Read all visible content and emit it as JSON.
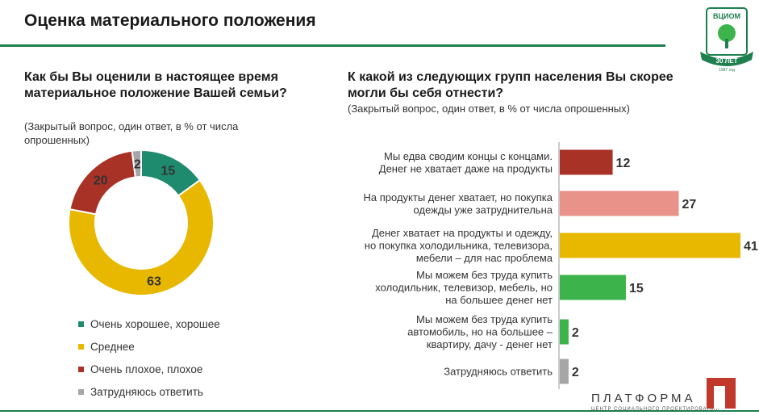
{
  "header": {
    "title": "Оценка материального положения",
    "logo_text_top": "ВЦИОМ",
    "logo_text_mid": "30 ЛЕТ",
    "logo_text_bottom": "1987 год"
  },
  "colors": {
    "rule": "#1e7f4f",
    "good": "#1e8a6e",
    "average": "#e8b800",
    "bad": "#a83226",
    "unsure": "#a6a6a6",
    "bar_red": "#a83226",
    "bar_pink": "#e8928a",
    "bar_yellow": "#e8b800",
    "bar_green": "#3cb44b",
    "bar_gray": "#a6a6a6"
  },
  "left": {
    "question": "Как бы Вы оценили в настоящее время материальное положение Вашей семьи?",
    "note": "(Закрытый вопрос, один ответ, в % от числа опрошенных)"
  },
  "right": {
    "question": "К какой из следующих групп населения Вы скорее могли бы себя отнести?",
    "note": "(Закрытый вопрос, один ответ, в % от числа опрошенных)"
  },
  "chart_data": [
    {
      "type": "pie",
      "variant": "donut",
      "categories": [
        "Очень хорошее, хорошее",
        "Среднее",
        "Очень плохое, плохое",
        "Затрудняюсь ответить"
      ],
      "values": [
        15,
        63,
        20,
        2
      ],
      "colors": [
        "#1e8a6e",
        "#e8b800",
        "#a83226",
        "#a6a6a6"
      ],
      "legend_position": "bottom"
    },
    {
      "type": "bar",
      "orientation": "horizontal",
      "categories": [
        [
          "Мы едва сводим концы с концами.",
          "Денег не хватает даже на продукты"
        ],
        [
          "На продукты денег хватает, но покупка",
          "одежды уже затруднительна"
        ],
        [
          "Денег хватает на продукты и одежду,",
          "но покупка холодильника, телевизора,",
          "мебели – для нас проблема"
        ],
        [
          "Мы можем без труда купить",
          "холодильник, телевизор, мебель, но",
          "на большее денег нет"
        ],
        [
          "Мы можем без труда купить",
          "автомобиль, но на большее –",
          "квартиру, дачу - денег нет"
        ],
        [
          "Затрудняюсь ответить"
        ]
      ],
      "values": [
        12,
        27,
        41,
        15,
        2,
        2
      ],
      "colors": [
        "#a83226",
        "#e8928a",
        "#e8b800",
        "#3cb44b",
        "#3cb44b",
        "#a6a6a6"
      ],
      "xlim": [
        0,
        41
      ]
    }
  ],
  "footer": {
    "brand": "ПЛАТФОРМА",
    "brand_sub": "ЦЕНТР СОЦИАЛЬНОГО ПРОЕКТИРОВАНИЯ"
  }
}
